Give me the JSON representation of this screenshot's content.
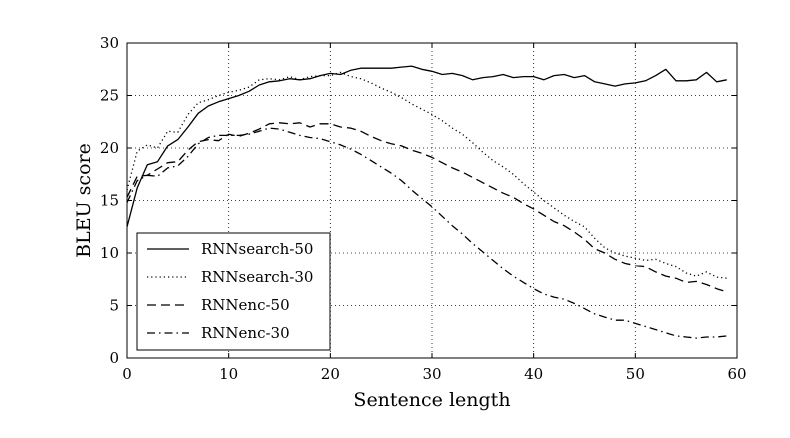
{
  "chart_data": {
    "type": "line",
    "title": "",
    "xlabel": "Sentence length",
    "ylabel": "BLEU score",
    "xlim": [
      0,
      60
    ],
    "ylim": [
      0,
      30
    ],
    "xticks": [
      "0",
      "10",
      "20",
      "30",
      "40",
      "50",
      "60"
    ],
    "yticks": [
      "0",
      "5",
      "10",
      "15",
      "20",
      "25",
      "30"
    ],
    "grid": true,
    "legend_position": "bottom-left",
    "series": [
      {
        "name": "RNNsearch-50",
        "style": "solid",
        "x": [
          0,
          1,
          2,
          3,
          4,
          5,
          6,
          7,
          8,
          9,
          10,
          11,
          12,
          13,
          14,
          15,
          16,
          17,
          18,
          19,
          20,
          21,
          22,
          23,
          24,
          25,
          26,
          27,
          28,
          29,
          30,
          31,
          32,
          33,
          34,
          35,
          36,
          37,
          38,
          39,
          40,
          41,
          42,
          43,
          44,
          45,
          46,
          47,
          48,
          49,
          50,
          51,
          52,
          53,
          54,
          55,
          56,
          57,
          58,
          59
        ],
        "y": [
          12.5,
          16.2,
          18.4,
          18.7,
          20.2,
          20.8,
          22.0,
          23.3,
          24.0,
          24.4,
          24.7,
          25.0,
          25.4,
          26.0,
          26.3,
          26.4,
          26.6,
          26.5,
          26.6,
          26.9,
          27.1,
          27.0,
          27.4,
          27.6,
          27.6,
          27.6,
          27.6,
          27.7,
          27.8,
          27.5,
          27.3,
          27.0,
          27.1,
          26.9,
          26.5,
          26.7,
          26.8,
          27.0,
          26.7,
          26.8,
          26.8,
          26.5,
          26.9,
          27.0,
          26.7,
          26.9,
          26.3,
          26.1,
          25.9,
          26.1,
          26.2,
          26.4,
          26.9,
          27.5,
          26.4,
          26.4,
          26.5,
          27.2,
          26.3,
          26.5
        ]
      },
      {
        "name": "RNNsearch-30",
        "style": "dotted",
        "x": [
          0,
          1,
          2,
          3,
          4,
          5,
          6,
          7,
          8,
          9,
          10,
          11,
          12,
          13,
          14,
          15,
          16,
          17,
          18,
          19,
          20,
          21,
          22,
          23,
          24,
          25,
          26,
          27,
          28,
          29,
          30,
          31,
          32,
          33,
          34,
          35,
          36,
          37,
          38,
          39,
          40,
          41,
          42,
          43,
          44,
          45,
          46,
          47,
          48,
          49,
          50,
          51,
          52,
          53,
          54,
          55,
          56,
          57,
          58,
          59
        ],
        "y": [
          16.0,
          19.7,
          20.3,
          20.0,
          21.6,
          21.5,
          23.2,
          24.3,
          24.6,
          25.0,
          25.3,
          25.5,
          25.8,
          26.5,
          26.6,
          26.5,
          26.8,
          26.5,
          26.8,
          26.9,
          26.9,
          27.2,
          26.8,
          26.6,
          26.2,
          25.7,
          25.3,
          24.8,
          24.2,
          23.7,
          23.2,
          22.6,
          21.9,
          21.3,
          20.5,
          19.6,
          18.8,
          18.2,
          17.5,
          16.6,
          15.8,
          15.0,
          14.3,
          13.6,
          13.0,
          12.5,
          11.4,
          10.5,
          10.0,
          9.7,
          9.5,
          9.3,
          9.4,
          9.0,
          8.7,
          8.1,
          7.8,
          8.2,
          7.7,
          7.6
        ]
      },
      {
        "name": "RNNenc-50",
        "style": "dashed",
        "x": [
          0,
          1,
          2,
          3,
          4,
          5,
          6,
          7,
          8,
          9,
          10,
          11,
          12,
          13,
          14,
          15,
          16,
          17,
          18,
          19,
          20,
          21,
          22,
          23,
          24,
          25,
          26,
          27,
          28,
          29,
          30,
          31,
          32,
          33,
          34,
          35,
          36,
          37,
          38,
          39,
          40,
          41,
          42,
          43,
          44,
          45,
          46,
          47,
          48,
          49,
          50,
          51,
          52,
          53,
          54,
          55,
          56,
          57,
          58,
          59
        ],
        "y": [
          15.3,
          17.3,
          17.4,
          18.0,
          18.6,
          18.7,
          19.8,
          20.6,
          20.8,
          20.7,
          21.3,
          21.1,
          21.4,
          21.8,
          22.3,
          22.4,
          22.3,
          22.4,
          22.0,
          22.3,
          22.3,
          22.0,
          21.9,
          21.6,
          21.1,
          20.7,
          20.4,
          20.2,
          19.8,
          19.5,
          19.1,
          18.6,
          18.1,
          17.7,
          17.2,
          16.7,
          16.2,
          15.7,
          15.3,
          14.7,
          14.2,
          13.6,
          13.0,
          12.6,
          12.0,
          11.3,
          10.4,
          10.0,
          9.4,
          9.0,
          8.8,
          8.7,
          8.2,
          7.8,
          7.6,
          7.2,
          7.3,
          7.0,
          6.6,
          6.3
        ]
      },
      {
        "name": "RNNenc-30",
        "style": "dashdot",
        "x": [
          0,
          1,
          2,
          3,
          4,
          5,
          6,
          7,
          8,
          9,
          10,
          11,
          12,
          13,
          14,
          15,
          16,
          17,
          18,
          19,
          20,
          21,
          22,
          23,
          24,
          25,
          26,
          27,
          28,
          29,
          30,
          31,
          32,
          33,
          34,
          35,
          36,
          37,
          38,
          39,
          40,
          41,
          42,
          43,
          44,
          45,
          46,
          47,
          48,
          49,
          50,
          51,
          52,
          53,
          54,
          55,
          56,
          57,
          58,
          59
        ],
        "y": [
          14.8,
          16.9,
          17.4,
          17.3,
          18.1,
          18.3,
          19.2,
          20.4,
          21.0,
          21.2,
          21.2,
          21.2,
          21.3,
          21.6,
          21.9,
          21.8,
          21.5,
          21.2,
          21.0,
          20.9,
          20.6,
          20.3,
          19.9,
          19.4,
          18.8,
          18.2,
          17.6,
          16.9,
          16.0,
          15.2,
          14.4,
          13.5,
          12.6,
          11.8,
          10.9,
          10.1,
          9.3,
          8.5,
          7.8,
          7.2,
          6.6,
          6.1,
          5.8,
          5.6,
          5.2,
          4.7,
          4.2,
          3.9,
          3.6,
          3.6,
          3.3,
          3.0,
          2.7,
          2.4,
          2.1,
          2.0,
          1.9,
          2.0,
          2.0,
          2.1
        ]
      }
    ]
  }
}
